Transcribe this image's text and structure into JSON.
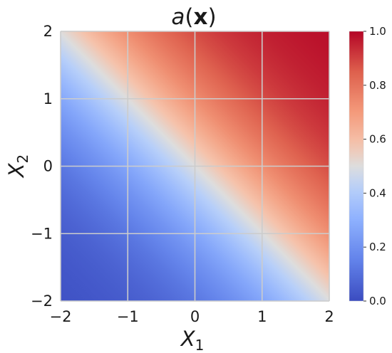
{
  "chart_data": {
    "type": "heatmap",
    "title_italic": "a",
    "title_open": "(",
    "title_bold": "x",
    "title_close": ")",
    "xlabel_var": "X",
    "xlabel_sub": "1",
    "ylabel_var": "X",
    "ylabel_sub": "2",
    "xlim": [
      -2,
      2
    ],
    "ylim": [
      -2,
      2
    ],
    "xticks": [
      -2,
      -1,
      0,
      1,
      2
    ],
    "yticks": [
      -2,
      -1,
      0,
      1,
      2
    ],
    "xtick_labels": [
      "−2",
      "−1",
      "0",
      "1",
      "2"
    ],
    "ytick_labels": [
      "−2",
      "−1",
      "0",
      "1",
      "2"
    ],
    "grid": true,
    "colormap": "coolwarm",
    "function": "sigmoid(x1 + x2)",
    "values_by_x1_plus_x2": {
      "-4": 0.018,
      "-2": 0.119,
      "0": 0.5,
      "2": 0.881,
      "4": 0.982
    },
    "colorbar": {
      "range": [
        0.0,
        1.0
      ],
      "ticks": [
        0.0,
        0.2,
        0.4,
        0.6,
        0.8,
        1.0
      ],
      "tick_labels": [
        "0.0",
        "0.2",
        "0.4",
        "0.6",
        "0.8",
        "1.0"
      ],
      "low_color": "#3b4cc0",
      "mid_color": "#dddddd",
      "high_color": "#b40426"
    }
  }
}
